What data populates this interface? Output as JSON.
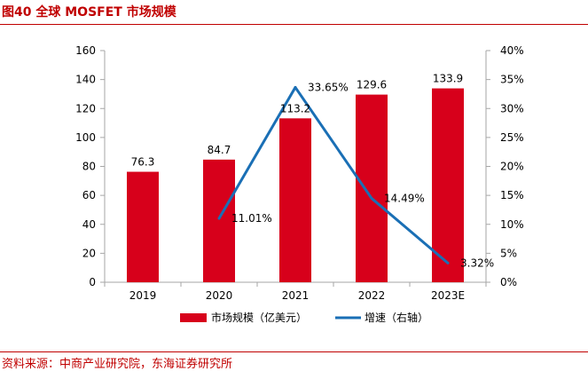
{
  "figure": {
    "title": "图40  全球 MOSFET 市场规模",
    "source": "资料来源：中商产业研究院，东海证券研究所"
  },
  "colors": {
    "bar": "#d7001b",
    "line": "#1a6fb5",
    "title": "#c00000",
    "text": "#000000",
    "axis": "#a6a6a6"
  },
  "chart_data": {
    "type": "bar",
    "title": "全球 MOSFET 市场规模",
    "categories": [
      "2019",
      "2020",
      "2021",
      "2022",
      "2023E"
    ],
    "series": [
      {
        "name": "市场规模（亿美元）",
        "type": "bar",
        "axis": "left",
        "values": [
          76.3,
          84.7,
          113.2,
          129.6,
          133.9
        ],
        "labels": [
          "76.3",
          "84.7",
          "113.2",
          "129.6",
          "133.9"
        ]
      },
      {
        "name": "增速（右轴）",
        "type": "line",
        "axis": "right",
        "values": [
          null,
          11.01,
          33.65,
          14.49,
          3.32
        ],
        "labels": [
          "",
          "11.01%",
          "33.65%",
          "14.49%",
          "3.32%"
        ]
      }
    ],
    "y_left": {
      "min": 0,
      "max": 160,
      "step": 20,
      "ticks": [
        "0",
        "20",
        "40",
        "60",
        "80",
        "100",
        "120",
        "140",
        "160"
      ]
    },
    "y_right": {
      "min": 0,
      "max": 40,
      "step": 5,
      "ticks": [
        "0%",
        "5%",
        "10%",
        "15%",
        "20%",
        "25%",
        "30%",
        "35%",
        "40%"
      ]
    },
    "legend_position": "bottom",
    "grid": false
  }
}
